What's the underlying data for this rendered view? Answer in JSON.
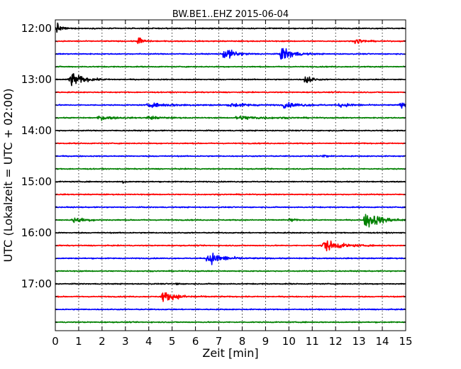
{
  "chart_data": {
    "type": "line",
    "chart_kind": "helicorder",
    "title": "BW.BE1..EHZ 2015-06-04",
    "xlabel": "Zeit  [min]",
    "ylabel": "UTC (Lokalzeit = UTC + 02:00)",
    "xlim": [
      0,
      15
    ],
    "x_ticks": [
      0,
      1,
      2,
      3,
      4,
      5,
      6,
      7,
      8,
      9,
      10,
      11,
      12,
      13,
      14,
      15
    ],
    "x_tick_labels": [
      "0",
      "1",
      "2",
      "3",
      "4",
      "5",
      "6",
      "7",
      "8",
      "9",
      "10",
      "11",
      "12",
      "13",
      "14",
      "15"
    ],
    "grid": "vertical-dotted",
    "row_minutes": 15,
    "row_colors": [
      "#000000",
      "#ff0000",
      "#0000ff",
      "#008000"
    ],
    "rows": [
      {
        "time": "12:00",
        "events": [
          {
            "t": 0.1,
            "amp": 0.7,
            "dur": 0.35
          }
        ]
      },
      {
        "time": "12:15",
        "events": [
          {
            "t": 3.6,
            "amp": 0.7,
            "dur": 0.35
          },
          {
            "t": 12.9,
            "amp": 0.45,
            "dur": 0.55
          }
        ]
      },
      {
        "time": "12:30",
        "events": [
          {
            "t": 7.25,
            "amp": 0.9,
            "dur": 0.9
          },
          {
            "t": 9.7,
            "amp": 1.2,
            "dur": 0.9
          }
        ]
      },
      {
        "time": "12:45",
        "events": []
      },
      {
        "time": "13:00",
        "events": [
          {
            "t": 0.65,
            "amp": 1.1,
            "dur": 1.0
          },
          {
            "t": 10.75,
            "amp": 0.9,
            "dur": 0.4
          }
        ]
      },
      {
        "time": "13:15",
        "events": []
      },
      {
        "time": "13:30",
        "events": [
          {
            "t": 4.0,
            "amp": 0.25,
            "dur": 2.5
          },
          {
            "t": 7.5,
            "amp": 0.3,
            "dur": 1.5
          },
          {
            "t": 9.8,
            "amp": 0.35,
            "dur": 1.5
          },
          {
            "t": 12.2,
            "amp": 0.25,
            "dur": 1.2
          },
          {
            "t": 14.8,
            "amp": 0.35,
            "dur": 0.5
          }
        ]
      },
      {
        "time": "13:45",
        "events": [
          {
            "t": 1.9,
            "amp": 0.3,
            "dur": 1.2
          },
          {
            "t": 4.0,
            "amp": 0.25,
            "dur": 1.0
          },
          {
            "t": 7.8,
            "amp": 0.3,
            "dur": 2.2
          }
        ]
      },
      {
        "time": "14:00",
        "events": []
      },
      {
        "time": "14:15",
        "events": []
      },
      {
        "time": "14:30",
        "events": [
          {
            "t": 11.45,
            "amp": 0.45,
            "dur": 0.3
          }
        ]
      },
      {
        "time": "14:45",
        "events": []
      },
      {
        "time": "15:00",
        "events": [
          {
            "t": 2.9,
            "amp": 0.2,
            "dur": 0.2
          }
        ]
      },
      {
        "time": "15:15",
        "events": []
      },
      {
        "time": "15:30",
        "events": []
      },
      {
        "time": "15:45",
        "events": [
          {
            "t": 0.8,
            "amp": 0.4,
            "dur": 1.0
          },
          {
            "t": 10.1,
            "amp": 0.25,
            "dur": 0.3
          },
          {
            "t": 13.3,
            "amp": 1.3,
            "dur": 1.3
          }
        ]
      },
      {
        "time": "16:00",
        "events": []
      },
      {
        "time": "16:15",
        "events": [
          {
            "t": 11.5,
            "amp": 0.9,
            "dur": 1.3
          }
        ]
      },
      {
        "time": "16:30",
        "events": [
          {
            "t": 6.55,
            "amp": 1.0,
            "dur": 1.2
          }
        ]
      },
      {
        "time": "16:45",
        "events": []
      },
      {
        "time": "17:00",
        "events": [
          {
            "t": 5.2,
            "amp": 0.2,
            "dur": 0.2
          }
        ]
      },
      {
        "time": "17:15",
        "events": [
          {
            "t": 4.6,
            "amp": 0.7,
            "dur": 1.3
          }
        ]
      },
      {
        "time": "17:30",
        "events": []
      },
      {
        "time": "17:45",
        "events": []
      }
    ],
    "y_tick_labels": [
      "12:00",
      "13:00",
      "14:00",
      "15:00",
      "16:00",
      "17:00"
    ]
  }
}
